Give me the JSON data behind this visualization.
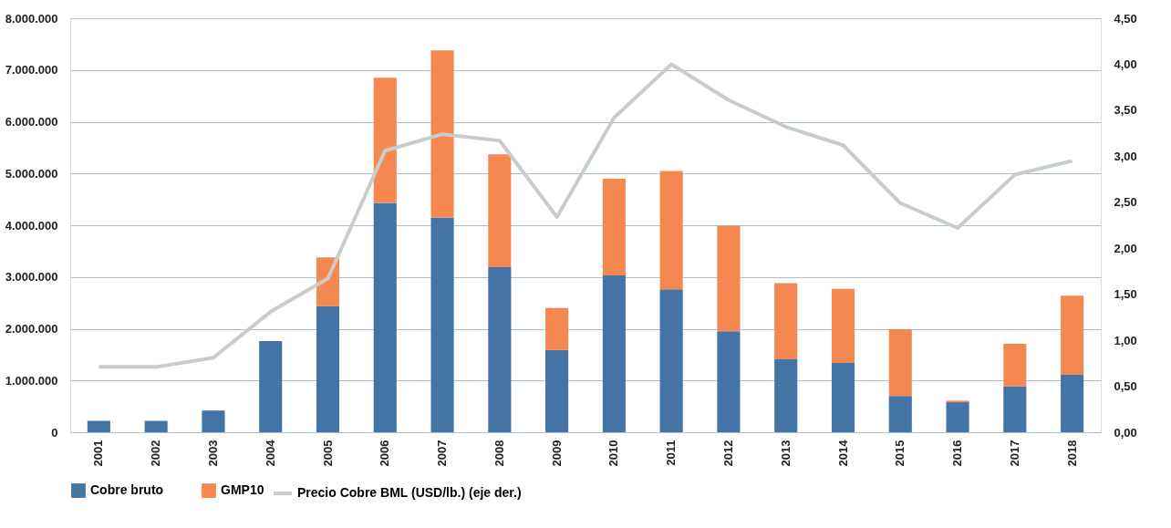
{
  "chart_data": {
    "type": "bar",
    "stacked": true,
    "categories": [
      "2001",
      "2002",
      "2003",
      "2004",
      "2005",
      "2006",
      "2007",
      "2008",
      "2009",
      "2010",
      "2011",
      "2012",
      "2013",
      "2014",
      "2015",
      "2016",
      "2017",
      "2018"
    ],
    "series": [
      {
        "name": "Cobre bruto",
        "color": "#4374a5",
        "values": [
          220000,
          220000,
          420000,
          1760000,
          2440000,
          4430000,
          4150000,
          3190000,
          1590000,
          3030000,
          2760000,
          1950000,
          1410000,
          1340000,
          700000,
          580000,
          890000,
          1110000
        ]
      },
      {
        "name": "GMP10",
        "color": "#f58851",
        "values": [
          0,
          0,
          0,
          0,
          940000,
          2420000,
          3230000,
          2180000,
          810000,
          1870000,
          2290000,
          2040000,
          1470000,
          1430000,
          1290000,
          30000,
          820000,
          1530000
        ]
      },
      {
        "name": "Precio Cobre BML (USD/lb.) (eje der.)",
        "color": "#c8cdcc",
        "type": "line",
        "axis": "y2",
        "values": [
          0.71,
          0.71,
          0.81,
          1.31,
          1.67,
          3.06,
          3.24,
          3.17,
          2.34,
          3.42,
          4.0,
          3.61,
          3.32,
          3.12,
          2.49,
          2.22,
          2.8,
          2.95
        ]
      }
    ],
    "ylim": [
      0,
      8000000
    ],
    "yticks": [
      {
        "value": 0,
        "label": "0"
      },
      {
        "value": 1000000,
        "label": "1.000.000"
      },
      {
        "value": 2000000,
        "label": "2.000.000"
      },
      {
        "value": 3000000,
        "label": "3.000.000"
      },
      {
        "value": 4000000,
        "label": "4.000.000"
      },
      {
        "value": 5000000,
        "label": "5.000.000"
      },
      {
        "value": 6000000,
        "label": "6.000.000"
      },
      {
        "value": 7000000,
        "label": "7.000.000"
      },
      {
        "value": 8000000,
        "label": "8.000.000"
      }
    ],
    "y2lim": [
      0,
      4.5
    ],
    "y2ticks": [
      {
        "value": 0,
        "label": "0,00"
      },
      {
        "value": 0.5,
        "label": "0,50"
      },
      {
        "value": 1,
        "label": "1,00"
      },
      {
        "value": 1.5,
        "label": "1,50"
      },
      {
        "value": 2,
        "label": "2,00"
      },
      {
        "value": 2.5,
        "label": "2,50"
      },
      {
        "value": 3,
        "label": "3,00"
      },
      {
        "value": 3.5,
        "label": "3,50"
      },
      {
        "value": 4,
        "label": "4,00"
      },
      {
        "value": 4.5,
        "label": "4,50"
      }
    ],
    "grid": "y",
    "legend": "bottom"
  }
}
